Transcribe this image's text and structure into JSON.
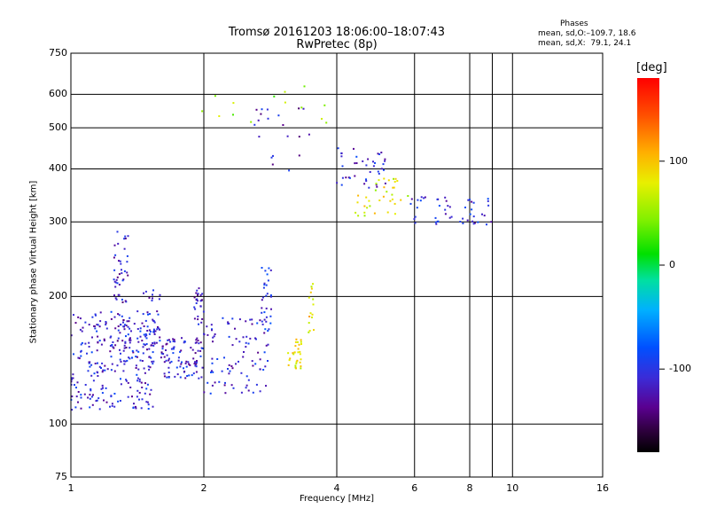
{
  "title": "Tromsø 20161203 18:06:00–18:07:43",
  "subtitle": "RwPretec (8p)",
  "phase_stats": {
    "title": "Phases",
    "o_line": "mean, sd,O:–109.7, 18.6",
    "x_line": "mean, sd,X:  79.1, 24.1"
  },
  "colorbar": {
    "unit_label": "[deg]",
    "ticks": [
      "100",
      "0",
      "-100"
    ],
    "range": [
      -180,
      180
    ]
  },
  "chart_data": {
    "type": "scatter",
    "xlabel": "Frequency [MHz]",
    "ylabel": "Stationary phase Virtual Height [km]",
    "x_scale": "log",
    "y_scale": "log",
    "xlim": [
      1,
      16
    ],
    "ylim": [
      75,
      750
    ],
    "x_ticks": [
      "1",
      "2",
      "4",
      "6",
      "8",
      "10",
      "16"
    ],
    "y_ticks": [
      "750",
      "600",
      "500",
      "400",
      "300",
      "200",
      "100",
      "75"
    ],
    "grid": true,
    "clusters": [
      {
        "x_range": [
          1.0,
          1.55
        ],
        "y_range": [
          108,
          185
        ],
        "phase": -112,
        "count": 260
      },
      {
        "x_range": [
          1.25,
          1.35
        ],
        "y_range": [
          150,
          285
        ],
        "phase": -118,
        "count": 60
      },
      {
        "x_range": [
          1.45,
          1.6
        ],
        "y_range": [
          140,
          210
        ],
        "phase": -110,
        "count": 40
      },
      {
        "x_range": [
          1.6,
          2.0
        ],
        "y_range": [
          128,
          160
        ],
        "phase": -115,
        "count": 90
      },
      {
        "x_range": [
          1.9,
          2.0
        ],
        "y_range": [
          155,
          210
        ],
        "phase": -120,
        "count": 30
      },
      {
        "x_range": [
          2.0,
          2.8
        ],
        "y_range": [
          118,
          180
        ],
        "phase": -112,
        "count": 90
      },
      {
        "x_range": [
          2.7,
          2.85
        ],
        "y_range": [
          165,
          235
        ],
        "phase": -100,
        "count": 30
      },
      {
        "x_range": [
          3.1,
          3.35
        ],
        "y_range": [
          135,
          160
        ],
        "phase": 85,
        "count": 30
      },
      {
        "x_range": [
          3.45,
          3.55
        ],
        "y_range": [
          155,
          215
        ],
        "phase": 88,
        "count": 15
      },
      {
        "x_range": [
          4.0,
          5.3
        ],
        "y_range": [
          360,
          450
        ],
        "phase": -112,
        "count": 40
      },
      {
        "x_range": [
          4.4,
          5.8
        ],
        "y_range": [
          310,
          380
        ],
        "phase": 80,
        "count": 35
      },
      {
        "x_range": [
          5.8,
          9.0
        ],
        "y_range": [
          295,
          345
        ],
        "phase": -110,
        "count": 50
      },
      {
        "x_range": [
          2.6,
          3.5
        ],
        "y_range": [
          390,
          560
        ],
        "phase": -120,
        "count": 20
      },
      {
        "x_range": [
          1.8,
          3.8
        ],
        "y_range": [
          500,
          640
        ],
        "phase": 50,
        "count": 14
      }
    ]
  }
}
